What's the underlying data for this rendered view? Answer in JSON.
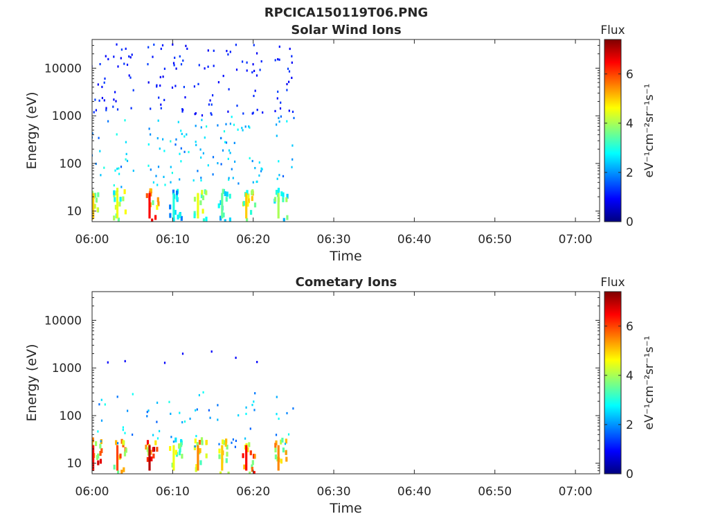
{
  "figure": {
    "title": "RPCICA150119T06.PNG"
  },
  "colormap": {
    "name": "jet",
    "stops": [
      "#00007f",
      "#0000ff",
      "#007fff",
      "#00ffff",
      "#7fff7f",
      "#ffff00",
      "#ff7f00",
      "#ff0000",
      "#7f0000"
    ]
  },
  "chart_data": [
    {
      "type": "heatmap",
      "title": "Solar Wind Ions",
      "xlabel": "Time",
      "ylabel": "Energy (eV)",
      "y_scale": "log",
      "xlim": [
        "06:00",
        "07:03"
      ],
      "ylim": [
        6,
        40000
      ],
      "x_ticks": [
        "06:00",
        "06:10",
        "06:20",
        "06:30",
        "06:40",
        "06:50",
        "07:00"
      ],
      "y_ticks": [
        {
          "value": 10,
          "label": "10"
        },
        {
          "value": 100,
          "label": "100"
        },
        {
          "value": 1000,
          "label": "1000"
        },
        {
          "value": 10000,
          "label": "10000"
        }
      ],
      "data_coverage": [
        "06:00",
        "06:24"
      ],
      "sweeps": [
        {
          "time": "06:00",
          "low_energy_flux": 5.0
        },
        {
          "time": "06:03",
          "low_energy_flux": 4.5
        },
        {
          "time": "06:07",
          "low_energy_flux": 6.5
        },
        {
          "time": "06:10",
          "low_energy_flux": 3.0
        },
        {
          "time": "06:13",
          "low_energy_flux": 4.5
        },
        {
          "time": "06:16",
          "low_energy_flux": 3.5
        },
        {
          "time": "06:19",
          "low_energy_flux": 5.0
        },
        {
          "time": "06:23",
          "low_energy_flux": 4.0
        }
      ],
      "colorbar": {
        "title": "Flux",
        "label": "eV⁻¹cm⁻²sr⁻¹s⁻¹",
        "range": [
          0,
          7.4
        ],
        "ticks": [
          0,
          2,
          4,
          6
        ]
      }
    },
    {
      "type": "heatmap",
      "title": "Cometary Ions",
      "xlabel": "Time",
      "ylabel": "Energy (eV)",
      "y_scale": "log",
      "xlim": [
        "06:00",
        "07:03"
      ],
      "ylim": [
        6,
        40000
      ],
      "x_ticks": [
        "06:00",
        "06:10",
        "06:20",
        "06:30",
        "06:40",
        "06:50",
        "07:00"
      ],
      "y_ticks": [
        {
          "value": 10,
          "label": "10"
        },
        {
          "value": 100,
          "label": "100"
        },
        {
          "value": 1000,
          "label": "1000"
        },
        {
          "value": 10000,
          "label": "10000"
        }
      ],
      "data_coverage": [
        "06:00",
        "06:24"
      ],
      "sweeps": [
        {
          "time": "06:00",
          "low_energy_flux": 6.5
        },
        {
          "time": "06:03",
          "low_energy_flux": 6.0
        },
        {
          "time": "06:07",
          "low_energy_flux": 7.0
        },
        {
          "time": "06:10",
          "low_energy_flux": 4.5
        },
        {
          "time": "06:13",
          "low_energy_flux": 5.5
        },
        {
          "time": "06:16",
          "low_energy_flux": 5.0
        },
        {
          "time": "06:19",
          "low_energy_flux": 6.5
        },
        {
          "time": "06:23",
          "low_energy_flux": 5.5
        }
      ],
      "colorbar": {
        "title": "Flux",
        "label": "eV⁻¹cm⁻²sr⁻¹s⁻¹",
        "range": [
          0,
          7.4
        ],
        "ticks": [
          0,
          2,
          4,
          6
        ]
      }
    }
  ]
}
